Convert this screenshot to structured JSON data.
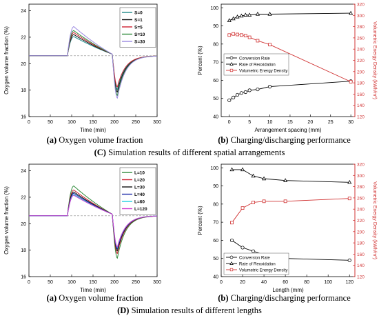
{
  "captions": {
    "c_oxy": {
      "letter": "(a)",
      "text": " Oxygen volume fraction"
    },
    "c_perf": {
      "letter": "(b)",
      "text": " Charging/discharging performance"
    },
    "section_c": {
      "letter": "(C)",
      "text": " Simulation results of different spatial arrangements"
    },
    "d_oxy": {
      "letter": "(a)",
      "text": " Oxygen volume fraction"
    },
    "d_perf": {
      "letter": "(b)",
      "text": " Charging/discharging performance"
    },
    "section_d": {
      "letter": "(D)",
      "text": " Simulation results of different lengths"
    }
  },
  "chart_data": [
    {
      "type": "line",
      "xlabel": "Time (min)",
      "ylabel": "Oxygen volume fraction (%)",
      "xlim": [
        0,
        300
      ],
      "ylim": [
        16,
        24.5
      ],
      "xticks": [
        0,
        50,
        100,
        150,
        200,
        250,
        300
      ],
      "yticks": [
        16,
        18,
        20,
        22,
        24
      ],
      "baseline": 20.6,
      "legend_position": "top-right",
      "series": [
        {
          "name": "S=0",
          "color": "#1e8a8a",
          "peak": 22.05,
          "dip": 18.05
        },
        {
          "name": "S=1",
          "color": "#111111",
          "peak": 22.2,
          "dip": 17.85
        },
        {
          "name": "S=5",
          "color": "#cc2030",
          "peak": 22.35,
          "dip": 18.25
        },
        {
          "name": "S=10",
          "color": "#2e8a3a",
          "peak": 22.5,
          "dip": 17.6
        },
        {
          "name": "S=30",
          "color": "#9a88e0",
          "peak": 22.8,
          "dip": 17.4
        }
      ]
    },
    {
      "type": "line",
      "xlabel": "Arrangement spacing (mm)",
      "ylabel": "Percent (%)",
      "y2label": "Volumetric Energy Density (kWh/m³)",
      "xlim": [
        -2,
        31
      ],
      "ylim": [
        40,
        102
      ],
      "y2lim": [
        120,
        320
      ],
      "xticks": [
        0,
        5,
        10,
        15,
        20,
        25,
        30
      ],
      "yticks": [
        40,
        50,
        60,
        70,
        80,
        90,
        100
      ],
      "y2ticks": [
        120,
        140,
        160,
        180,
        200,
        220,
        240,
        260,
        280,
        300,
        320
      ],
      "legend_position": "left-middle",
      "series": [
        {
          "name": "Conversion Rate",
          "axis": "left",
          "color": "#000000",
          "marker": "circle",
          "x": [
            0,
            1,
            2,
            3,
            4,
            5,
            7,
            10,
            30
          ],
          "y": [
            49,
            50.5,
            52,
            53,
            53.5,
            54.5,
            55,
            56.5,
            59.5
          ]
        },
        {
          "name": "Rate of Reoxidation",
          "axis": "left",
          "color": "#000000",
          "marker": "triangle",
          "x": [
            0,
            1,
            2,
            3,
            4,
            5,
            7,
            10,
            30
          ],
          "y": [
            93,
            94,
            95,
            95.5,
            96,
            96,
            96.5,
            96.5,
            97
          ]
        },
        {
          "name": "Volumetric Energy Density",
          "axis": "right",
          "color": "#d03030",
          "marker": "square",
          "x": [
            0,
            1,
            2,
            3,
            4,
            5,
            7,
            10,
            30
          ],
          "y": [
            265,
            267,
            266,
            265,
            264,
            261,
            255,
            248,
            182
          ]
        }
      ]
    },
    {
      "type": "line",
      "xlabel": "Time (min)",
      "ylabel": "Oxygen volume fraction (%)",
      "xlim": [
        0,
        300
      ],
      "ylim": [
        16,
        24.5
      ],
      "xticks": [
        0,
        50,
        100,
        150,
        200,
        250,
        300
      ],
      "yticks": [
        16,
        18,
        20,
        22,
        24
      ],
      "baseline": 20.6,
      "legend_position": "top-right",
      "series": [
        {
          "name": "L=10",
          "color": "#2e8a3a",
          "peak": 22.85,
          "dip": 17.4
        },
        {
          "name": "L=20",
          "color": "#cc2030",
          "peak": 22.55,
          "dip": 17.75
        },
        {
          "name": "L=30",
          "color": "#111111",
          "peak": 22.4,
          "dip": 17.95
        },
        {
          "name": "L=40",
          "color": "#1c2aa8",
          "peak": 22.3,
          "dip": 18.1
        },
        {
          "name": "L=60",
          "color": "#20d0e0",
          "peak": 22.2,
          "dip": 18.2
        },
        {
          "name": "L=120",
          "color": "#d03ad0",
          "peak": 22.15,
          "dip": 18.25
        }
      ]
    },
    {
      "type": "line",
      "xlabel": "Length (mm)",
      "ylabel": "Percent (%)",
      "y2label": "Volumetric Energy Density (kWh/m³)",
      "xlim": [
        0,
        125
      ],
      "ylim": [
        40,
        102
      ],
      "y2lim": [
        120,
        320
      ],
      "xticks": [
        0,
        20,
        40,
        60,
        80,
        100,
        120
      ],
      "yticks": [
        40,
        50,
        60,
        70,
        80,
        90,
        100
      ],
      "y2ticks": [
        120,
        140,
        160,
        180,
        200,
        220,
        240,
        260,
        280,
        300,
        320
      ],
      "legend_position": "bottom-left",
      "series": [
        {
          "name": "Conversion Rate",
          "axis": "left",
          "color": "#000000",
          "marker": "circle",
          "x": [
            10,
            20,
            30,
            40,
            60,
            120
          ],
          "y": [
            60,
            56,
            54,
            52,
            50,
            49
          ]
        },
        {
          "name": "Rate of Reoxidation",
          "axis": "left",
          "color": "#000000",
          "marker": "triangle",
          "x": [
            10,
            20,
            30,
            40,
            60,
            120
          ],
          "y": [
            99,
            99,
            95.5,
            94,
            93,
            92
          ]
        },
        {
          "name": "Volumetric Energy Density",
          "axis": "right",
          "color": "#d03030",
          "marker": "square",
          "x": [
            10,
            20,
            30,
            40,
            60,
            120
          ],
          "y": [
            216,
            242,
            252,
            254,
            254,
            259
          ]
        }
      ]
    }
  ]
}
